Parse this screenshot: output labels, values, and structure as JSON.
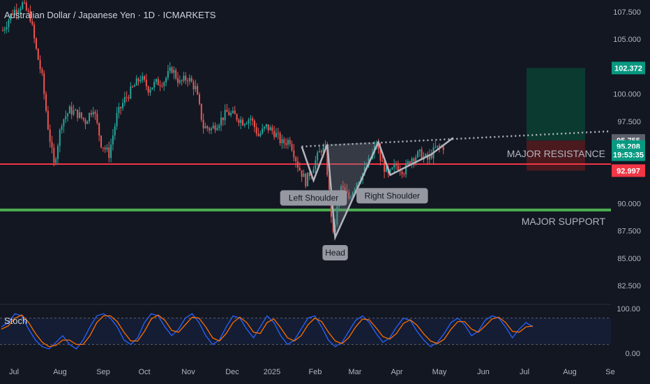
{
  "chart_data": {
    "type": "candlestick",
    "title": "Australian Dollar / Japanese Yen · 1D · ICMARKETS",
    "y_ticks": [
      "107.500",
      "105.000",
      "100.000",
      "97.500",
      "90.000",
      "87.500",
      "85.000",
      "82.500"
    ],
    "ylim": [
      81.0,
      108.3
    ],
    "x_ticks": [
      "Jul",
      "Aug",
      "Sep",
      "Oct",
      "Nov",
      "Dec",
      "2025",
      "Feb",
      "Mar",
      "Apr",
      "May",
      "Jun",
      "Jul",
      "Aug",
      "Se"
    ],
    "price_points": [
      {
        "d": 0,
        "p": 105.8
      },
      {
        "d": 5,
        "p": 107.5
      },
      {
        "d": 10,
        "p": 108.2
      },
      {
        "d": 14,
        "p": 107.0
      },
      {
        "d": 17,
        "p": 104.0
      },
      {
        "d": 20,
        "p": 101.5
      },
      {
        "d": 23,
        "p": 97.0
      },
      {
        "d": 26,
        "p": 93.5
      },
      {
        "d": 28,
        "p": 95.5
      },
      {
        "d": 30,
        "p": 97.5
      },
      {
        "d": 34,
        "p": 98.5
      },
      {
        "d": 38,
        "p": 98.2
      },
      {
        "d": 42,
        "p": 97.5
      },
      {
        "d": 46,
        "p": 98.8
      },
      {
        "d": 50,
        "p": 95.5
      },
      {
        "d": 54,
        "p": 94.5
      },
      {
        "d": 58,
        "p": 98.0
      },
      {
        "d": 62,
        "p": 99.5
      },
      {
        "d": 66,
        "p": 100.5
      },
      {
        "d": 70,
        "p": 101.5
      },
      {
        "d": 74,
        "p": 100.5
      },
      {
        "d": 78,
        "p": 101.0
      },
      {
        "d": 82,
        "p": 101.2
      },
      {
        "d": 86,
        "p": 102.3
      },
      {
        "d": 90,
        "p": 101.0
      },
      {
        "d": 94,
        "p": 101.5
      },
      {
        "d": 98,
        "p": 100.5
      },
      {
        "d": 102,
        "p": 97.0
      },
      {
        "d": 106,
        "p": 96.8
      },
      {
        "d": 110,
        "p": 97.5
      },
      {
        "d": 114,
        "p": 98.3
      },
      {
        "d": 118,
        "p": 98.0
      },
      {
        "d": 122,
        "p": 97.5
      },
      {
        "d": 126,
        "p": 97.8
      },
      {
        "d": 130,
        "p": 96.2
      },
      {
        "d": 134,
        "p": 97.0
      },
      {
        "d": 138,
        "p": 96.5
      },
      {
        "d": 142,
        "p": 95.5
      },
      {
        "d": 146,
        "p": 95.8
      },
      {
        "d": 150,
        "p": 93.5
      },
      {
        "d": 154,
        "p": 92.0
      },
      {
        "d": 158,
        "p": 93.5
      },
      {
        "d": 162,
        "p": 95.0
      },
      {
        "d": 164,
        "p": 94.8
      },
      {
        "d": 166,
        "p": 91.0
      },
      {
        "d": 168,
        "p": 87.0
      },
      {
        "d": 170,
        "p": 89.5
      },
      {
        "d": 172,
        "p": 91.5
      },
      {
        "d": 176,
        "p": 90.5
      },
      {
        "d": 180,
        "p": 92.0
      },
      {
        "d": 184,
        "p": 93.0
      },
      {
        "d": 188,
        "p": 94.5
      },
      {
        "d": 190,
        "p": 95.5
      },
      {
        "d": 192,
        "p": 94.0
      },
      {
        "d": 196,
        "p": 92.5
      },
      {
        "d": 200,
        "p": 93.5
      },
      {
        "d": 204,
        "p": 93.0
      },
      {
        "d": 208,
        "p": 94.2
      },
      {
        "d": 212,
        "p": 94.5
      },
      {
        "d": 216,
        "p": 94.0
      },
      {
        "d": 220,
        "p": 95.0
      },
      {
        "d": 224,
        "p": 95.2
      }
    ],
    "price_tags": [
      {
        "label": "102.372",
        "value": 102.372,
        "color": "#089981"
      },
      {
        "label": "95.755",
        "value": 95.755,
        "color": "#5d606b"
      },
      {
        "label": "95.208",
        "value": 95.208,
        "color": "#089981"
      },
      {
        "label": "19:53:35",
        "value": 94.45,
        "color": "#089981"
      },
      {
        "label": "92.997",
        "value": 92.997,
        "color": "#f23645"
      }
    ],
    "lines": {
      "major_resistance": {
        "label": "MAJOR RESISTANCE",
        "value": 93.6,
        "color": "#f23645"
      },
      "major_support": {
        "label": "MAJOR SUPPORT",
        "value": 89.4,
        "color": "#4caf50"
      }
    },
    "position": {
      "entry": 95.75,
      "target": 102.372,
      "stop": 92.997
    },
    "neckline": [
      {
        "d": 152,
        "p": 95.2
      },
      {
        "d": 229,
        "p": 96.6
      }
    ],
    "pattern_points": [
      {
        "d": 152,
        "p": 95.2
      },
      {
        "d": 158,
        "p": 92.1
      },
      {
        "d": 165,
        "p": 95.4
      },
      {
        "d": 169,
        "p": 86.9
      },
      {
        "d": 191,
        "p": 95.6
      },
      {
        "d": 197,
        "p": 92.6
      },
      {
        "d": 218,
        "p": 94.5
      },
      {
        "d": 229,
        "p": 96.0
      }
    ],
    "annotations": [
      {
        "label": "Left Shoulder",
        "d": 158,
        "p": 90.5
      },
      {
        "label": "Head",
        "d": 169,
        "p": 85.5
      },
      {
        "label": "Right Shoulder",
        "d": 198,
        "p": 90.7
      }
    ],
    "indicator": {
      "name": "Stoch",
      "ticks": [
        "100.00",
        "0.00"
      ],
      "k": [
        60,
        70,
        90,
        85,
        55,
        30,
        15,
        10,
        25,
        40,
        20,
        10,
        30,
        60,
        85,
        90,
        80,
        60,
        30,
        20,
        35,
        70,
        90,
        85,
        60,
        40,
        55,
        80,
        90,
        70,
        40,
        20,
        30,
        60,
        85,
        80,
        55,
        35,
        60,
        85,
        70,
        40,
        20,
        30,
        55,
        80,
        85,
        60,
        30,
        15,
        25,
        50,
        75,
        85,
        70,
        45,
        25,
        35,
        60,
        80,
        75,
        50,
        30,
        15,
        25,
        45,
        70,
        80,
        65,
        40,
        50,
        75,
        85,
        80,
        60,
        35,
        55,
        70,
        60
      ],
      "d": [
        55,
        62,
        80,
        87,
        70,
        45,
        25,
        15,
        18,
        30,
        30,
        20,
        20,
        40,
        70,
        85,
        85,
        72,
        48,
        28,
        28,
        50,
        78,
        87,
        75,
        52,
        48,
        65,
        82,
        80,
        60,
        35,
        28,
        45,
        70,
        82,
        70,
        48,
        45,
        70,
        78,
        58,
        35,
        28,
        40,
        65,
        80,
        72,
        48,
        28,
        22,
        36,
        60,
        78,
        76,
        58,
        38,
        32,
        45,
        68,
        76,
        64,
        44,
        28,
        22,
        32,
        55,
        72,
        72,
        55,
        48,
        62,
        78,
        82,
        70,
        50,
        48,
        60,
        62
      ]
    }
  }
}
